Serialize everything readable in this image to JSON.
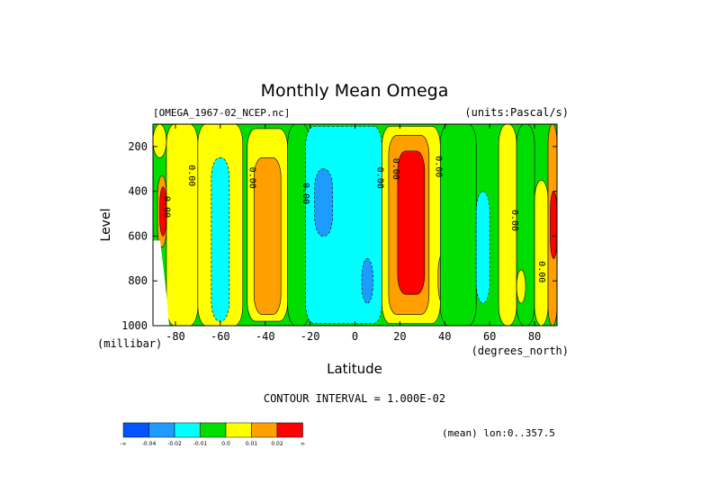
{
  "chart_data": {
    "type": "heatmap",
    "title": "Monthly Mean Omega",
    "dataset_label": "[OMEGA_1967-02_NCEP.nc]",
    "units_label": "(units:Pascal/s)",
    "xlabel": "Latitude",
    "ylabel": "Level",
    "x_unit_label": "(degrees_north)",
    "y_unit_label": "(millibar)",
    "xlim": [
      -90,
      90
    ],
    "ylim": [
      1000,
      100
    ],
    "x_ticks": [
      -80,
      -60,
      -40,
      -20,
      0,
      20,
      40,
      60,
      80
    ],
    "y_ticks": [
      200,
      400,
      600,
      800,
      1000
    ],
    "contour_interval_label": "CONTOUR INTERVAL = 1.000E-02",
    "mean_label": "(mean) lon:0..357.5",
    "contour_labels": [
      {
        "text": "0.00",
        "x": -85,
        "y": 470
      },
      {
        "text": "0.00",
        "x": -74,
        "y": 330
      },
      {
        "text": "0.00",
        "x": -47,
        "y": 340
      },
      {
        "text": "0.00",
        "x": -23,
        "y": 410
      },
      {
        "text": "0.00",
        "x": 10,
        "y": 340
      },
      {
        "text": "0.00",
        "x": 17,
        "y": 300
      },
      {
        "text": "0.00",
        "x": 36,
        "y": 290
      },
      {
        "text": "0.00",
        "x": 70,
        "y": 530
      },
      {
        "text": "0.00",
        "x": 82,
        "y": 760
      }
    ],
    "colorbar": {
      "colors": [
        "#0055ff",
        "#1e9bff",
        "#00ffff",
        "#00dd00",
        "#ffff00",
        "#ff9f00",
        "#ff0000"
      ],
      "labels": [
        "-∞",
        "-0.04",
        "-0.02",
        "-0.01",
        "0.0",
        "0.01",
        "0.02",
        "∞"
      ]
    },
    "field": {
      "description_levels": "each row: list of [lat_start, lat_end, level_top, level_bottom, color_index]",
      "regions": [
        [
          -90,
          90,
          100,
          1000,
          3
        ],
        [
          -90,
          -84,
          100,
          250,
          4
        ],
        [
          -84,
          -70,
          100,
          1000,
          4
        ],
        [
          -88,
          -84,
          330,
          650,
          5
        ],
        [
          -87,
          -84,
          380,
          600,
          6
        ],
        [
          -70,
          -50,
          100,
          1000,
          4
        ],
        [
          -64,
          -56,
          250,
          980,
          2
        ],
        [
          -48,
          -30,
          120,
          980,
          4
        ],
        [
          -45,
          -33,
          250,
          950,
          5
        ],
        [
          -30,
          -20,
          100,
          1000,
          3
        ],
        [
          -22,
          12,
          110,
          990,
          2
        ],
        [
          -18,
          -10,
          300,
          600,
          1
        ],
        [
          3,
          8,
          700,
          900,
          1
        ],
        [
          12,
          38,
          110,
          990,
          4
        ],
        [
          15,
          33,
          150,
          950,
          5
        ],
        [
          19,
          31,
          220,
          860,
          6
        ],
        [
          37,
          41,
          680,
          900,
          5
        ],
        [
          38,
          54,
          100,
          1000,
          3
        ],
        [
          54,
          60,
          400,
          900,
          2
        ],
        [
          64,
          72,
          100,
          1000,
          4
        ],
        [
          72,
          80,
          100,
          1000,
          3
        ],
        [
          80,
          86,
          350,
          1000,
          4
        ],
        [
          86,
          90,
          100,
          1000,
          5
        ],
        [
          87,
          90,
          400,
          700,
          6
        ],
        [
          72,
          76,
          750,
          900,
          4
        ]
      ]
    }
  }
}
